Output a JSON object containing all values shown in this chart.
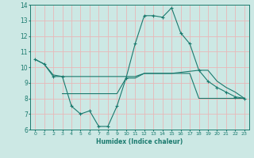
{
  "xlabel": "Humidex (Indice chaleur)",
  "background_color": "#cce8e4",
  "line_color": "#1a7a6e",
  "grid_color": "#e8b8b8",
  "xlim": [
    -0.5,
    23.5
  ],
  "ylim": [
    6,
    14
  ],
  "yticks": [
    6,
    7,
    8,
    9,
    10,
    11,
    12,
    13,
    14
  ],
  "xticks": [
    0,
    1,
    2,
    3,
    4,
    5,
    6,
    7,
    8,
    9,
    10,
    11,
    12,
    13,
    14,
    15,
    16,
    17,
    18,
    19,
    20,
    21,
    22,
    23
  ],
  "series1_x": [
    0,
    1,
    2,
    3,
    4,
    5,
    6,
    7,
    8,
    9,
    10,
    11,
    12,
    13,
    14,
    15,
    16,
    17,
    18,
    19,
    20,
    21,
    22,
    23
  ],
  "series1_y": [
    10.5,
    10.2,
    9.4,
    9.4,
    7.5,
    7.0,
    7.2,
    6.2,
    6.2,
    7.5,
    9.3,
    11.5,
    13.3,
    13.3,
    13.2,
    13.8,
    12.2,
    11.5,
    9.8,
    9.1,
    8.7,
    8.4,
    8.1,
    8.0
  ],
  "series2_x": [
    0,
    1,
    2,
    3,
    9,
    10,
    11,
    12,
    13,
    14,
    15,
    18,
    19,
    20,
    21,
    22,
    23
  ],
  "series2_y": [
    10.5,
    10.2,
    9.5,
    9.4,
    9.4,
    9.4,
    9.4,
    9.6,
    9.6,
    9.6,
    9.6,
    9.8,
    9.8,
    9.1,
    8.7,
    8.4,
    8.0
  ],
  "series3_x": [
    3,
    4,
    5,
    6,
    7,
    8,
    9,
    10,
    11,
    12,
    13,
    14,
    15,
    16,
    17,
    18,
    19,
    20,
    21,
    22,
    23
  ],
  "series3_y": [
    8.3,
    8.3,
    8.3,
    8.3,
    8.3,
    8.3,
    8.3,
    9.3,
    9.3,
    9.6,
    9.6,
    9.6,
    9.6,
    9.6,
    9.6,
    8.0,
    8.0,
    8.0,
    8.0,
    8.0,
    8.0
  ]
}
